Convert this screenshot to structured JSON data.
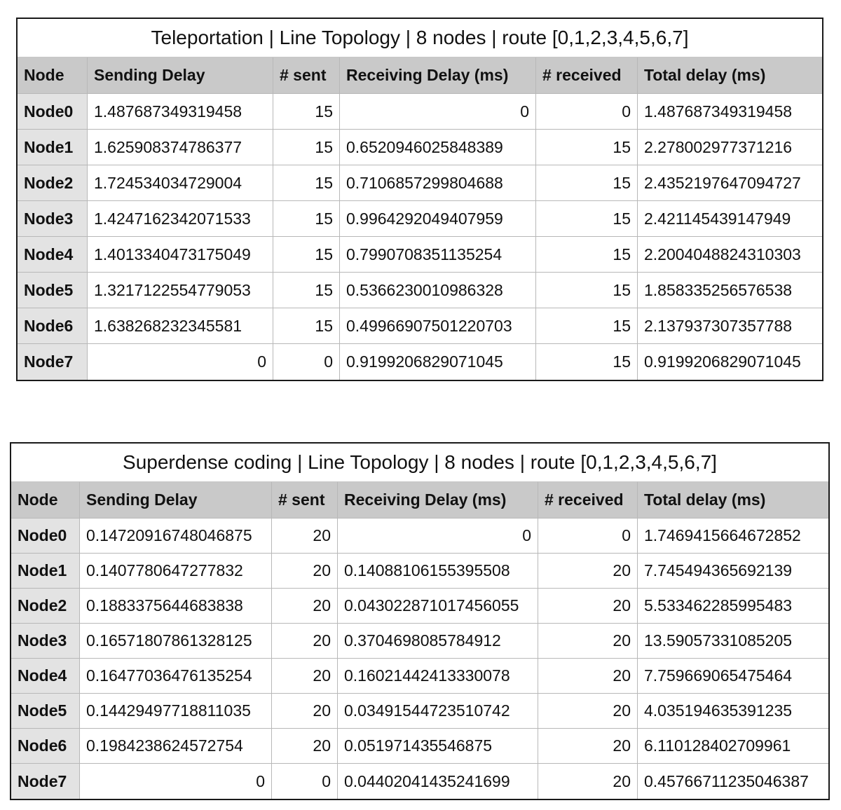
{
  "tables": [
    {
      "title": "Teleportation | Line Topology | 8 nodes | route [0,1,2,3,4,5,6,7]",
      "headers": [
        "Node",
        "Sending Delay",
        "# sent",
        "Receiving Delay (ms)",
        "# received",
        "Total delay (ms)"
      ],
      "rows": [
        [
          "Node0",
          "1.487687349319458",
          "15",
          "0",
          "0",
          "1.487687349319458"
        ],
        [
          "Node1",
          "1.625908374786377",
          "15",
          "0.6520946025848389",
          "15",
          "2.278002977371216"
        ],
        [
          "Node2",
          "1.724534034729004",
          "15",
          "0.7106857299804688",
          "15",
          "2.4352197647094727"
        ],
        [
          "Node3",
          "1.4247162342071533",
          "15",
          "0.9964292049407959",
          "15",
          "2.421145439147949"
        ],
        [
          "Node4",
          "1.4013340473175049",
          "15",
          "0.7990708351135254",
          "15",
          "2.2004048824310303"
        ],
        [
          "Node5",
          "1.3217122554779053",
          "15",
          "0.5366230010986328",
          "15",
          "1.858335256576538"
        ],
        [
          "Node6",
          "1.638268232345581",
          "15",
          "0.49966907501220703",
          "15",
          "2.137937307357788"
        ],
        [
          "Node7",
          "0",
          "0",
          "0.9199206829071045",
          "15",
          "0.9199206829071045"
        ]
      ]
    },
    {
      "title": "Superdense coding | Line Topology | 8 nodes | route [0,1,2,3,4,5,6,7]",
      "headers": [
        "Node",
        "Sending Delay",
        "# sent",
        "Receiving Delay (ms)",
        "# received",
        "Total delay (ms)"
      ],
      "rows": [
        [
          "Node0",
          "0.14720916748046875",
          "20",
          "0",
          "0",
          "1.7469415664672852"
        ],
        [
          "Node1",
          "0.1407780647277832",
          "20",
          "0.14088106155395508",
          "20",
          "7.745494365692139"
        ],
        [
          "Node2",
          "0.1883375644683838",
          "20",
          "0.043022871017456055",
          "20",
          "5.533462285995483"
        ],
        [
          "Node3",
          "0.16571807861328125",
          "20",
          "0.3704698085784912",
          "20",
          "13.59057331085205"
        ],
        [
          "Node4",
          "0.16477036476135254",
          "20",
          "0.16021442413330078",
          "20",
          "7.759669065475464"
        ],
        [
          "Node5",
          "0.14429497718811035",
          "20",
          "0.03491544723510742",
          "20",
          "4.035194635391235"
        ],
        [
          "Node6",
          "0.1984238624572754",
          "20",
          "0.051971435546875",
          "20",
          "6.110128402709961"
        ],
        [
          "Node7",
          "0",
          "0",
          "0.04402041435241699",
          "20",
          "0.45766711235046387"
        ]
      ]
    }
  ]
}
